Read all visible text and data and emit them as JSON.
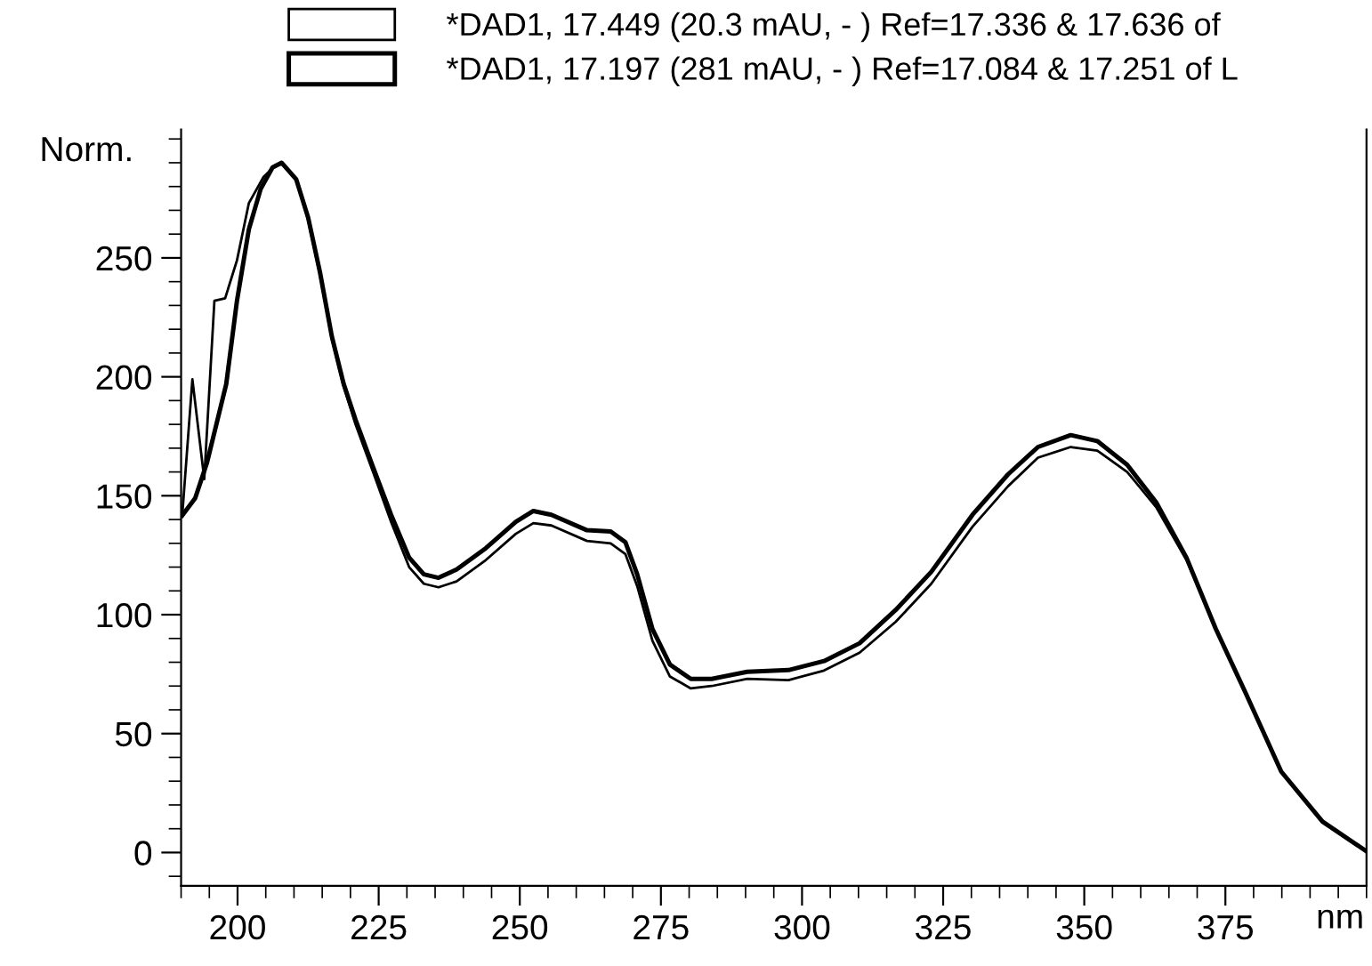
{
  "chart_data": {
    "type": "line",
    "xlabel": "nm",
    "ylabel": "Norm.",
    "legend": "top",
    "grid": false,
    "marker": "none",
    "line_style": "solid",
    "xlim": [
      190,
      400
    ],
    "ylim": [
      -14,
      304
    ],
    "xticks": [
      {
        "value": 190,
        "label": null
      },
      {
        "value": 195,
        "label": null
      },
      200,
      {
        "value": 205,
        "label": null
      },
      {
        "value": 210,
        "label": null
      },
      {
        "value": 215,
        "label": null
      },
      {
        "value": 220,
        "label": null
      },
      225,
      {
        "value": 230,
        "label": null
      },
      {
        "value": 235,
        "label": null
      },
      {
        "value": 240,
        "label": null
      },
      {
        "value": 245,
        "label": null
      },
      250,
      {
        "value": 255,
        "label": null
      },
      {
        "value": 260,
        "label": null
      },
      {
        "value": 265,
        "label": null
      },
      {
        "value": 270,
        "label": null
      },
      275,
      {
        "value": 280,
        "label": null
      },
      {
        "value": 285,
        "label": null
      },
      {
        "value": 290,
        "label": null
      },
      {
        "value": 295,
        "label": null
      },
      300,
      {
        "value": 305,
        "label": null
      },
      {
        "value": 310,
        "label": null
      },
      {
        "value": 315,
        "label": null
      },
      {
        "value": 320,
        "label": null
      },
      325,
      {
        "value": 330,
        "label": null
      },
      {
        "value": 335,
        "label": null
      },
      {
        "value": 340,
        "label": null
      },
      {
        "value": 345,
        "label": null
      },
      350,
      {
        "value": 355,
        "label": null
      },
      {
        "value": 360,
        "label": null
      },
      {
        "value": 365,
        "label": null
      },
      {
        "value": 370,
        "label": null
      },
      375,
      {
        "value": 380,
        "label": null
      },
      {
        "value": 385,
        "label": null
      },
      {
        "value": 390,
        "label": null
      },
      {
        "value": 395,
        "label": null
      },
      {
        "value": 400,
        "label": null
      }
    ],
    "yticks": [
      {
        "value": -10,
        "label": null
      },
      0,
      {
        "value": 10,
        "label": null
      },
      {
        "value": 20,
        "label": null
      },
      {
        "value": 30,
        "label": null
      },
      {
        "value": 40,
        "label": null
      },
      50,
      {
        "value": 60,
        "label": null
      },
      {
        "value": 70,
        "label": null
      },
      {
        "value": 80,
        "label": null
      },
      {
        "value": 90,
        "label": null
      },
      100,
      {
        "value": 110,
        "label": null
      },
      {
        "value": 120,
        "label": null
      },
      {
        "value": 130,
        "label": null
      },
      {
        "value": 140,
        "label": null
      },
      150,
      {
        "value": 160,
        "label": null
      },
      {
        "value": 170,
        "label": null
      },
      {
        "value": 180,
        "label": null
      },
      {
        "value": 190,
        "label": null
      },
      200,
      {
        "value": 210,
        "label": null
      },
      {
        "value": 220,
        "label": null
      },
      {
        "value": 230,
        "label": null
      },
      {
        "value": 240,
        "label": null
      },
      250,
      {
        "value": 260,
        "label": null
      },
      {
        "value": 270,
        "label": null
      },
      {
        "value": 280,
        "label": null
      },
      {
        "value": 290,
        "label": null
      },
      {
        "value": 300,
        "label": null
      }
    ],
    "series": [
      {
        "name": "*DAD1, 17.449 (20.3 mAU, - ) Ref=17.336 & 17.636 of",
        "color": "#000000",
        "x": [
          190.2,
          192,
          194.1,
          195.9,
          197.8,
          199.9,
          202,
          204.6,
          206.7,
          207.8,
          210.4,
          212.5,
          214.6,
          216.7,
          218.8,
          220.9,
          224,
          227.2,
          230.4,
          233,
          235.6,
          238.8,
          244,
          249.3,
          252.4,
          255.6,
          261.9,
          266.1,
          268.7,
          270.8,
          273.5,
          276.6,
          280.3,
          284,
          290.3,
          297.6,
          303.9,
          310.2,
          316.6,
          322.9,
          330.2,
          336.5,
          341.8,
          347.6,
          352.3,
          357.6,
          362.8,
          368.1,
          373.3,
          378.6,
          384.9,
          392.2,
          400
        ],
        "values": [
          141.7,
          199,
          157,
          232,
          233,
          249,
          273,
          284,
          289,
          290,
          283,
          266,
          243,
          216,
          196,
          180,
          160,
          139,
          120,
          113,
          111.5,
          114,
          123,
          134,
          138.5,
          137.5,
          131,
          130,
          125.5,
          112,
          89,
          74,
          69,
          70,
          73,
          72.5,
          76.5,
          84,
          97,
          113,
          137,
          154,
          166,
          170.5,
          169,
          160,
          145,
          123,
          94,
          67,
          34,
          13,
          0.5
        ]
      },
      {
        "name": "*DAD1, 17.197 (281 mAU, - ) Ref=17.084 & 17.251 of L",
        "color": "#000000",
        "x": [
          190.2,
          192.5,
          194.6,
          198,
          199.9,
          202,
          204.1,
          206.2,
          207.8,
          210.4,
          212.5,
          214.6,
          216.7,
          218.8,
          220.9,
          224,
          227.2,
          230.4,
          233,
          235.6,
          238.8,
          244,
          249.3,
          252.4,
          255.6,
          261.9,
          266.1,
          268.7,
          270.8,
          273.5,
          276.6,
          280.3,
          284,
          290.3,
          297.6,
          303.9,
          310.2,
          316.6,
          322.9,
          330.2,
          336.5,
          341.8,
          347.6,
          352.3,
          357.6,
          362.8,
          368.1,
          373.3,
          378.6,
          384.9,
          392.2,
          400
        ],
        "values": [
          141.7,
          149,
          164,
          197,
          232,
          262,
          279,
          288,
          290,
          283,
          267,
          244,
          217,
          197,
          182,
          162,
          142,
          124,
          117,
          115.5,
          119,
          128,
          139,
          143.6,
          142,
          135.5,
          135,
          130.5,
          117,
          94,
          79,
          73,
          73,
          76,
          76.7,
          80.5,
          88,
          102,
          118,
          142,
          159,
          170.5,
          175.5,
          173,
          163,
          147,
          124,
          94,
          67,
          34,
          13,
          0.5
        ]
      }
    ]
  }
}
